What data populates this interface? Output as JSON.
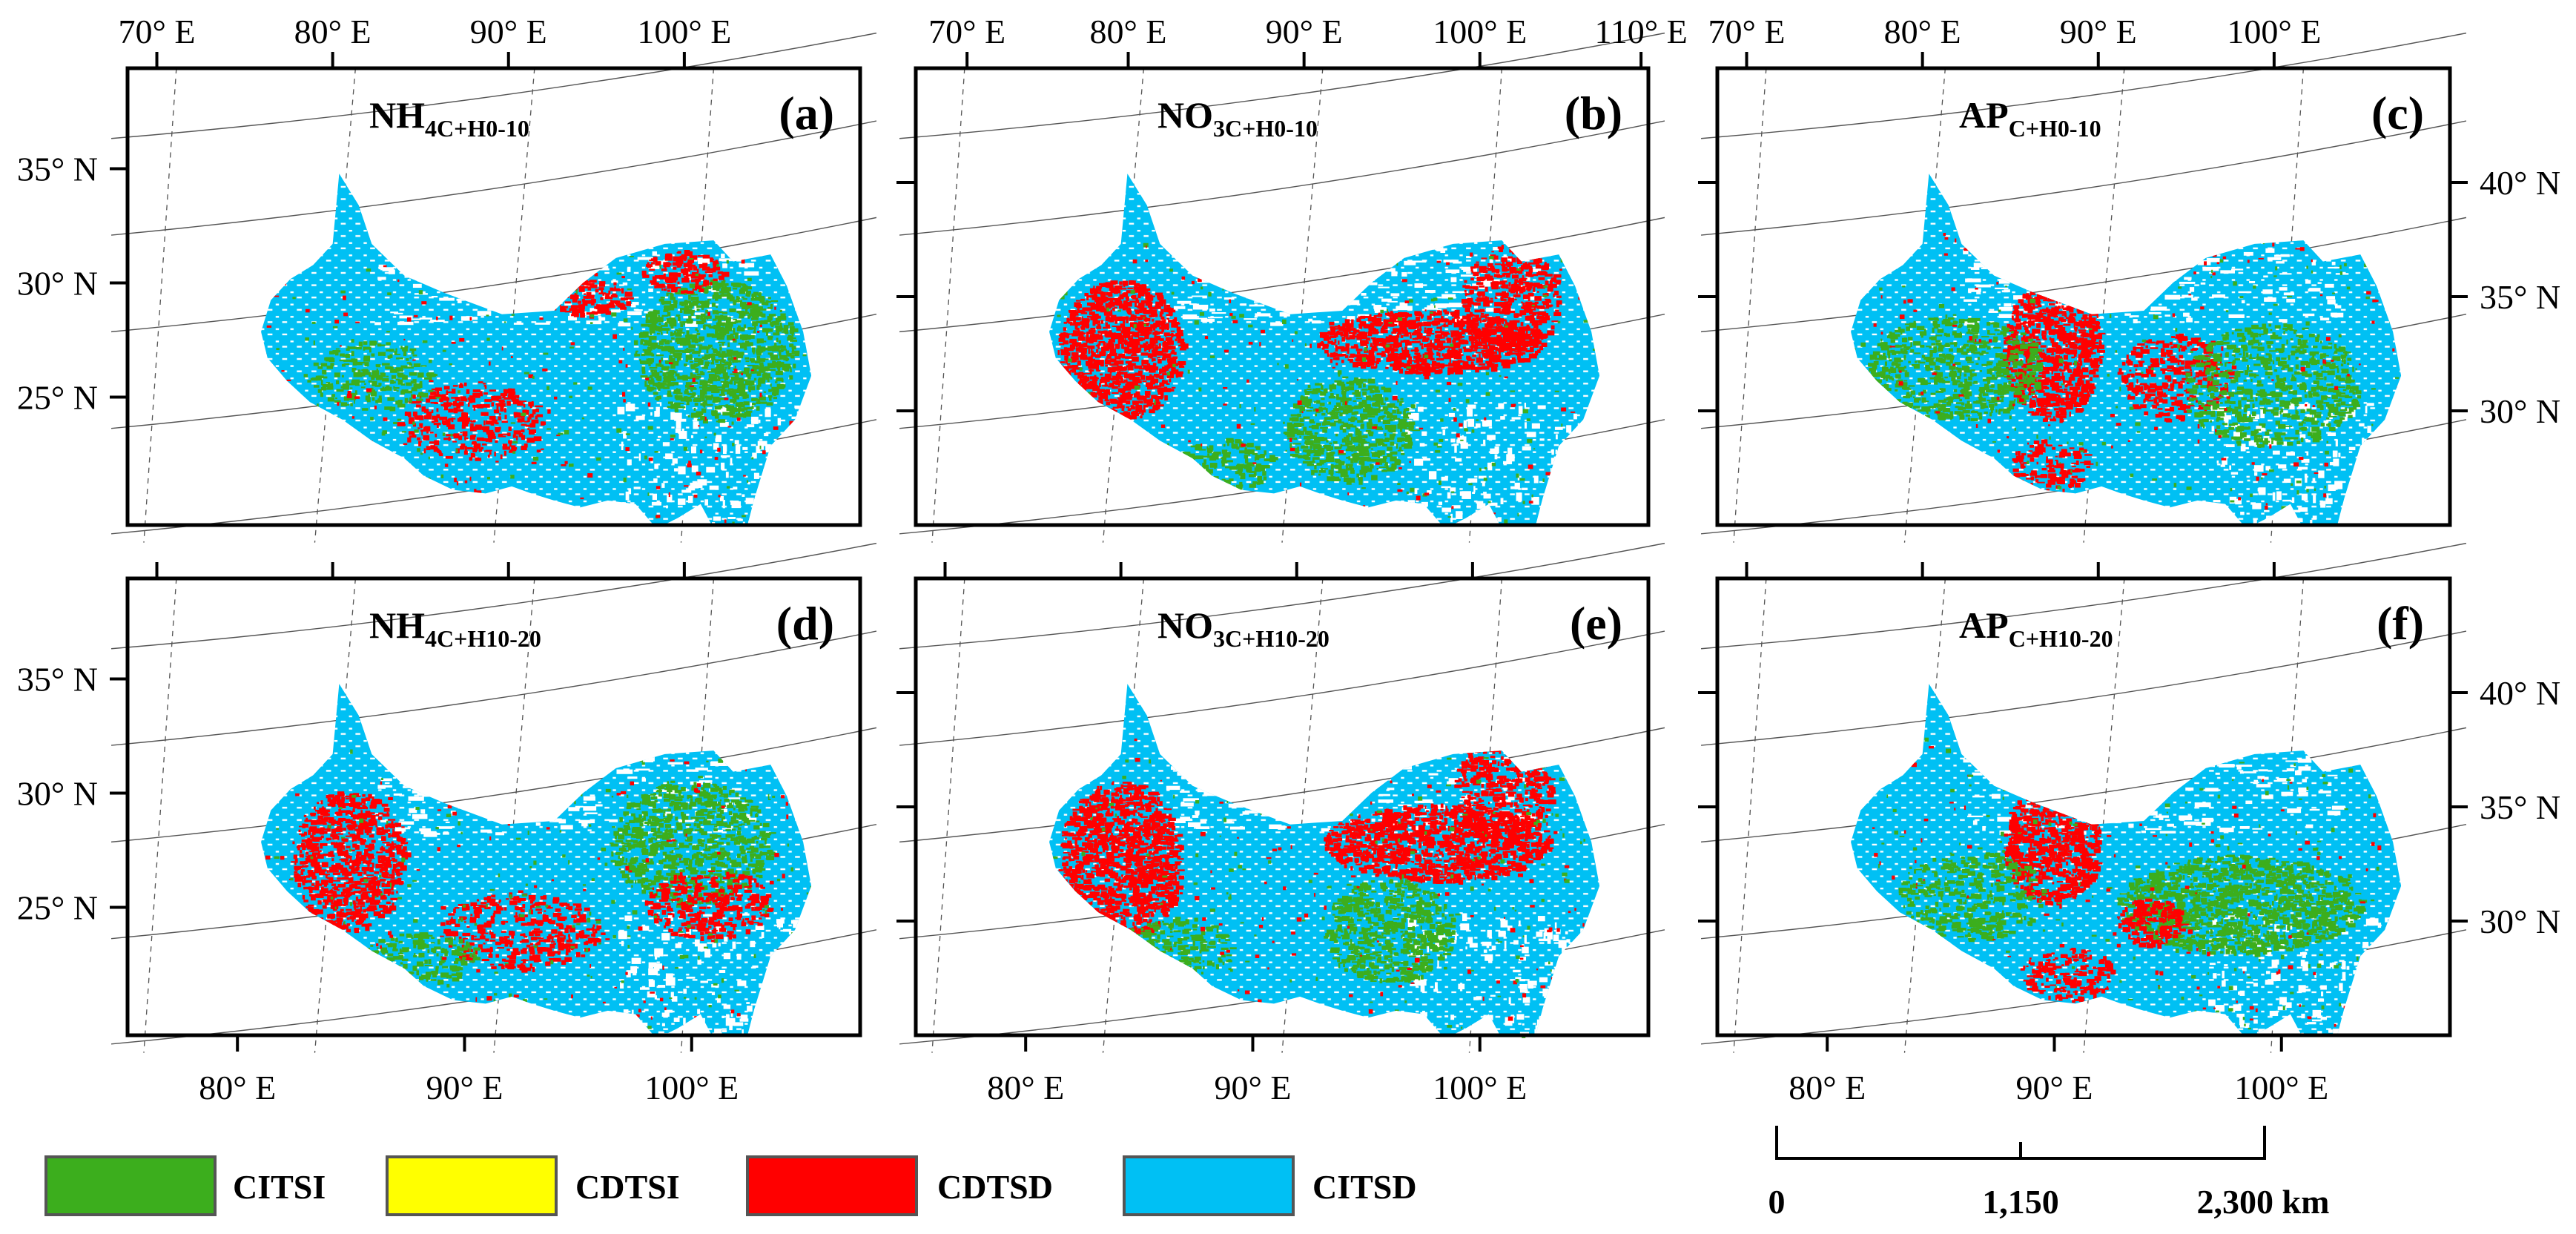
{
  "colors": {
    "CITSI": "#3cae1d",
    "CDTSI": "#ffff00",
    "CDTSD": "#ff0000",
    "CITSD": "#00c0f4",
    "frame": "#000000",
    "graticule": "#555555"
  },
  "panels": [
    {
      "letter": "(a)",
      "title_main": "NH",
      "title_sub": "4C+H0-10",
      "variant": "a"
    },
    {
      "letter": "(b)",
      "title_main": "NO",
      "title_sub": "3C+H0-10",
      "variant": "b"
    },
    {
      "letter": "(c)",
      "title_main": "AP",
      "title_sub": "C+H0-10",
      "variant": "c"
    },
    {
      "letter": "(d)",
      "title_main": "NH",
      "title_sub": "4C+H10-20",
      "variant": "d"
    },
    {
      "letter": "(e)",
      "title_main": "NO",
      "title_sub": "3C+H10-20",
      "variant": "e"
    },
    {
      "letter": "(f)",
      "title_main": "AP",
      "title_sub": "C+H10-20",
      "variant": "f"
    }
  ],
  "axes": {
    "top_lon_labels_a": [
      "70° E",
      "80° E",
      "90° E",
      "100° E"
    ],
    "top_lon_labels_b": [
      "70° E",
      "80° E",
      "90° E",
      "100° E",
      "110° E"
    ],
    "top_lon_labels_c": [
      "70° E",
      "80° E",
      "90° E",
      "100° E"
    ],
    "bottom_lon_labels_d": [
      "80° E",
      "90° E",
      "100° E"
    ],
    "bottom_lon_labels_e": [
      "80° E",
      "90° E",
      "100° E"
    ],
    "bottom_lon_labels_f": [
      "80° E",
      "90° E",
      "100° E"
    ],
    "left_lat_labels_top": [
      "35° N",
      "30° N",
      "25° N"
    ],
    "left_lat_labels_bottom": [
      "35° N",
      "30° N",
      "25° N"
    ],
    "right_lat_labels_top": [
      "40° N",
      "35° N",
      "30° N"
    ],
    "right_lat_labels_bottom": [
      "40° N",
      "35° N",
      "30° N"
    ]
  },
  "legend": [
    {
      "key": "CITSI",
      "label": "CITSI"
    },
    {
      "key": "CDTSI",
      "label": "CDTSI"
    },
    {
      "key": "CDTSD",
      "label": "CDTSD"
    },
    {
      "key": "CITSD",
      "label": "CITSD"
    }
  ],
  "scale_bar": {
    "labels": [
      "0",
      "1,150",
      "2,300 km"
    ]
  }
}
